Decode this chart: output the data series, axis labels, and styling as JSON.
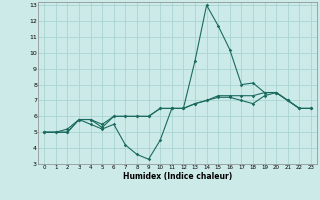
{
  "xlabel": "Humidex (Indice chaleur)",
  "bg_color": "#cceae8",
  "grid_color": "#aad4d2",
  "line_color": "#1a6b5e",
  "xlim": [
    -0.5,
    23.5
  ],
  "ylim": [
    3,
    13.2
  ],
  "yticks": [
    3,
    4,
    5,
    6,
    7,
    8,
    9,
    10,
    11,
    12,
    13
  ],
  "xticks": [
    0,
    1,
    2,
    3,
    4,
    5,
    6,
    7,
    8,
    9,
    10,
    11,
    12,
    13,
    14,
    15,
    16,
    17,
    18,
    19,
    20,
    21,
    22,
    23
  ],
  "line1_x": [
    0,
    1,
    2,
    3,
    4,
    5,
    6,
    7,
    8,
    9,
    10,
    11,
    12,
    13,
    14,
    15,
    16,
    17,
    18,
    19,
    20,
    21,
    22,
    23
  ],
  "line1_y": [
    5,
    5,
    5,
    5.8,
    5.8,
    5.5,
    6.0,
    6.0,
    6.0,
    6.0,
    6.5,
    6.5,
    6.5,
    6.8,
    7.0,
    7.3,
    7.3,
    7.3,
    7.3,
    7.5,
    7.5,
    7.0,
    6.5,
    6.5
  ],
  "line2_x": [
    0,
    1,
    2,
    3,
    4,
    5,
    6,
    7,
    8,
    9,
    10,
    11,
    12,
    13,
    14,
    15,
    16,
    17,
    18,
    19,
    20,
    21,
    22,
    23
  ],
  "line2_y": [
    5,
    5,
    5.2,
    5.8,
    5.5,
    5.2,
    5.5,
    4.2,
    3.6,
    3.3,
    4.5,
    6.5,
    6.5,
    9.5,
    13,
    11.7,
    10.2,
    8.0,
    8.1,
    7.5,
    7.5,
    7.0,
    6.5,
    6.5
  ],
  "line3_x": [
    0,
    2,
    3,
    4,
    5,
    6,
    7,
    8,
    9,
    10,
    11,
    12,
    13,
    14,
    15,
    16,
    17,
    18,
    19,
    20,
    21,
    22,
    23
  ],
  "line3_y": [
    5,
    5,
    5.8,
    5.8,
    5.3,
    6.0,
    6.0,
    6.0,
    6.0,
    6.5,
    6.5,
    6.5,
    6.8,
    7.0,
    7.2,
    7.2,
    7.0,
    6.8,
    7.3,
    7.5,
    7.0,
    6.5,
    6.5
  ]
}
